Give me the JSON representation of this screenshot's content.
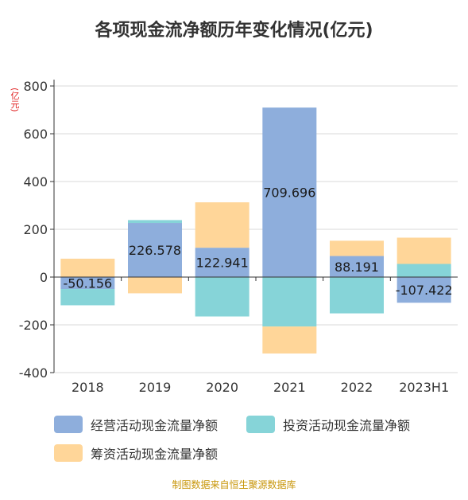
{
  "title": "各项现金流净额历年变化情况(亿元)",
  "unit": "(亿元)",
  "source": "制图数据来自恒生聚源数据库",
  "colors": {
    "operating": "#8eaedc",
    "investing": "#86d4d8",
    "financing": "#ffd699"
  },
  "chart_data": {
    "type": "bar",
    "stacked": true,
    "categories": [
      "2018",
      "2019",
      "2020",
      "2021",
      "2022",
      "2023H1"
    ],
    "ylim": [
      -400,
      800
    ],
    "yticks": [
      -400,
      -200,
      0,
      200,
      400,
      600,
      800
    ],
    "grid": true,
    "legend_position": "bottom",
    "series": [
      {
        "name": "经营活动现金流量净额",
        "values": [
          -50.156,
          226.578,
          122.941,
          709.696,
          88.191,
          -107.422
        ]
      },
      {
        "name": "投资活动现金流量净额",
        "values": [
          -68,
          12,
          -165,
          -207,
          -152,
          55
        ]
      },
      {
        "name": "筹资活动现金流量净额",
        "values": [
          77,
          -68,
          190,
          -113,
          64,
          110
        ]
      }
    ],
    "data_labels": [
      "-50.156",
      "226.578",
      "122.941",
      "709.696",
      "88.191",
      "-107.422"
    ]
  }
}
